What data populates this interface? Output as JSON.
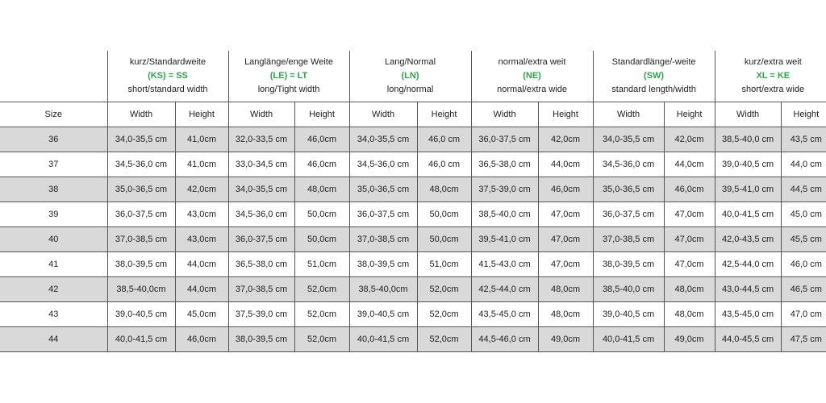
{
  "groups": [
    {
      "de": "kurz/Standardweite",
      "code": "(KS) = SS",
      "en": "short/standard width"
    },
    {
      "de": "Langlänge/enge Weite",
      "code": "(LE) = LT",
      "en": "long/Tight width"
    },
    {
      "de": "Lang/Normal",
      "code": "(LN)",
      "en": "long/normal"
    },
    {
      "de": "normal/extra weit",
      "code": "(NE)",
      "en": "normal/extra wide"
    },
    {
      "de": "Standardlänge/-weite",
      "code": "(SW)",
      "en": "standard length/width"
    },
    {
      "de": "kurz/extra weit",
      "code": "XL = KE",
      "en": "short/extra wide"
    }
  ],
  "size_header": "Size",
  "width_label": "Width",
  "height_label": "Height",
  "rows": [
    {
      "size": "36",
      "cells": [
        [
          "34,0-35,5 cm",
          "41,0cm"
        ],
        [
          "32,0-33,5 cm",
          "46,0cm"
        ],
        [
          "34,0-35,5 cm",
          "46,0 cm"
        ],
        [
          "36,0-37,5 cm",
          "42,0cm"
        ],
        [
          "34,0-35,5 cm",
          "42,0cm"
        ],
        [
          "38,5-40,0 cm",
          "43,5 cm"
        ]
      ]
    },
    {
      "size": "37",
      "cells": [
        [
          "34,5-36,0 cm",
          "41,0cm"
        ],
        [
          "33,0-34,5 cm",
          "46,0cm"
        ],
        [
          "34,5-36,0 cm",
          "46,0 cm"
        ],
        [
          "36,5-38,0 cm",
          "44,0cm"
        ],
        [
          "34,5-36,0 cm",
          "44,0cm"
        ],
        [
          "39,0-40,5 cm",
          "44,0 cm"
        ]
      ]
    },
    {
      "size": "38",
      "cells": [
        [
          "35,0-36,5 cm",
          "42,0cm"
        ],
        [
          "34,0-35,5 cm",
          "48,0cm"
        ],
        [
          "35,0-36,5 cm",
          "48,0cm"
        ],
        [
          "37,5-39,0 cm",
          "46,0cm"
        ],
        [
          "35,0-36,5 cm",
          "46,0cm"
        ],
        [
          "39,5-41,0 cm",
          "44,5 cm"
        ]
      ]
    },
    {
      "size": "39",
      "cells": [
        [
          "36,0-37,5 cm",
          "43,0cm"
        ],
        [
          "34,5-36,0 cm",
          "50,0cm"
        ],
        [
          "36,0-37,5 cm",
          "50,0cm"
        ],
        [
          "38,5-40,0 cm",
          "47,0cm"
        ],
        [
          "36,0-37,5 cm",
          "47,0cm"
        ],
        [
          "40,0-41,5 cm",
          "45,0 cm"
        ]
      ]
    },
    {
      "size": "40",
      "cells": [
        [
          "37,0-38,5 cm",
          "43,0cm"
        ],
        [
          "36,0-37,5 cm",
          "50,0cm"
        ],
        [
          "37,0-38,5 cm",
          "50,0cm"
        ],
        [
          "39,5-41,0 cm",
          "47,0cm"
        ],
        [
          "37,0-38,5 cm",
          "47,0cm"
        ],
        [
          "42,0-43,5 cm",
          "45,5 cm"
        ]
      ]
    },
    {
      "size": "41",
      "cells": [
        [
          "38,0-39,5 cm",
          "44,0cm"
        ],
        [
          "36,5-38,0 cm",
          "51,0cm"
        ],
        [
          "38,0-39,5 cm",
          "51,0cm"
        ],
        [
          "41,5-43,0 cm",
          "47,0cm"
        ],
        [
          "38,0-39,5 cm",
          "47,0cm"
        ],
        [
          "42,5-44,0 cm",
          "46,0 cm"
        ]
      ]
    },
    {
      "size": "42",
      "cells": [
        [
          "38,5-40,0cm",
          "44,0cm"
        ],
        [
          "37,0-38,5 cm",
          "52,0cm"
        ],
        [
          "38,5-40,0cm",
          "52,0cm"
        ],
        [
          "42,5-44,0 cm",
          "48,0cm"
        ],
        [
          "38,5-40,0 cm",
          "48,0cm"
        ],
        [
          "43,0-44,5 cm",
          "46,5 cm"
        ]
      ]
    },
    {
      "size": "43",
      "cells": [
        [
          "39,0-40,5 cm",
          "45,0cm"
        ],
        [
          "37,5-39,0 cm",
          "52,0cm"
        ],
        [
          "39,0-40,5 cm",
          "52,0cm"
        ],
        [
          "43,5-45,0 cm",
          "48,0cm"
        ],
        [
          "39,0-40,5 cm",
          "48,0cm"
        ],
        [
          "43,5-45,0 cm",
          "47,0 cm"
        ]
      ]
    },
    {
      "size": "44",
      "cells": [
        [
          "40,0-41,5 cm",
          "46,0cm"
        ],
        [
          "38,0-39,5 cm",
          "52,0cm"
        ],
        [
          "40,0-41,5 cm",
          "52,0cm"
        ],
        [
          "44,5-46,0 cm",
          "49,0cm"
        ],
        [
          "40,0-41,5 cm",
          "49,0cm"
        ],
        [
          "44,0-45,5 cm",
          "47,5 cm"
        ]
      ]
    }
  ]
}
